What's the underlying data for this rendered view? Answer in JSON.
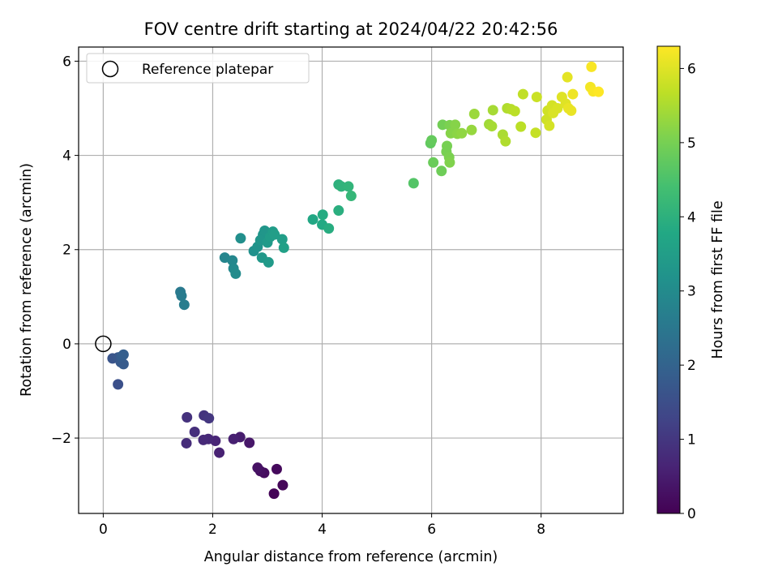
{
  "chart_data": {
    "type": "scatter",
    "title": "FOV centre drift starting at 2024/04/22 20:42:56",
    "xlabel": "Angular distance from reference (arcmin)",
    "ylabel": "Rotation from reference (arcmin)",
    "xlim": [
      -0.45,
      9.5
    ],
    "ylim": [
      -3.6,
      6.3
    ],
    "xticks": [
      "0",
      "2",
      "4",
      "6",
      "8"
    ],
    "yticks": [
      "−2",
      "0",
      "2",
      "4",
      "6"
    ],
    "grid": true,
    "legend": {
      "position": "top-left",
      "entries": [
        "Reference platepar"
      ]
    },
    "reference_point": {
      "x": 0,
      "y": 0
    },
    "colorbar": {
      "label": "Hours from first FF file",
      "range": [
        0,
        6.3
      ],
      "ticks": [
        "0",
        "1",
        "2",
        "3",
        "4",
        "5",
        "6"
      ],
      "colormap": "viridis"
    },
    "points": [
      {
        "x": 3.12,
        "y": -3.18,
        "c": 0.05
      },
      {
        "x": 3.28,
        "y": -3.0,
        "c": 0.1
      },
      {
        "x": 3.17,
        "y": -2.66,
        "c": 0.15
      },
      {
        "x": 2.94,
        "y": -2.74,
        "c": 0.2
      },
      {
        "x": 2.87,
        "y": -2.7,
        "c": 0.25
      },
      {
        "x": 2.82,
        "y": -2.63,
        "c": 0.3
      },
      {
        "x": 2.67,
        "y": -2.1,
        "c": 0.4
      },
      {
        "x": 2.5,
        "y": -1.98,
        "c": 0.5
      },
      {
        "x": 2.38,
        "y": -2.02,
        "c": 0.55
      },
      {
        "x": 2.12,
        "y": -2.31,
        "c": 0.6
      },
      {
        "x": 2.05,
        "y": -2.06,
        "c": 0.65
      },
      {
        "x": 1.92,
        "y": -2.02,
        "c": 0.7
      },
      {
        "x": 1.83,
        "y": -2.04,
        "c": 0.75
      },
      {
        "x": 1.52,
        "y": -2.11,
        "c": 0.8
      },
      {
        "x": 1.67,
        "y": -1.87,
        "c": 0.85
      },
      {
        "x": 1.53,
        "y": -1.56,
        "c": 0.9
      },
      {
        "x": 1.84,
        "y": -1.52,
        "c": 0.95
      },
      {
        "x": 1.93,
        "y": -1.58,
        "c": 1.0
      },
      {
        "x": 0.27,
        "y": -0.86,
        "c": 1.55
      },
      {
        "x": 0.17,
        "y": -0.31,
        "c": 1.65
      },
      {
        "x": 0.27,
        "y": -0.29,
        "c": 1.7
      },
      {
        "x": 0.32,
        "y": -0.39,
        "c": 1.75
      },
      {
        "x": 0.37,
        "y": -0.43,
        "c": 1.8
      },
      {
        "x": 0.33,
        "y": -0.27,
        "c": 1.85
      },
      {
        "x": 0.37,
        "y": -0.23,
        "c": 1.9
      },
      {
        "x": 1.41,
        "y": 1.1,
        "c": 2.55
      },
      {
        "x": 1.43,
        "y": 1.02,
        "c": 2.6
      },
      {
        "x": 1.48,
        "y": 0.83,
        "c": 2.65
      },
      {
        "x": 2.22,
        "y": 1.83,
        "c": 2.85
      },
      {
        "x": 2.36,
        "y": 1.77,
        "c": 2.9
      },
      {
        "x": 2.38,
        "y": 1.6,
        "c": 2.95
      },
      {
        "x": 2.42,
        "y": 1.49,
        "c": 3.0
      },
      {
        "x": 2.51,
        "y": 2.24,
        "c": 3.1
      },
      {
        "x": 2.75,
        "y": 1.97,
        "c": 3.15
      },
      {
        "x": 2.82,
        "y": 2.06,
        "c": 3.2
      },
      {
        "x": 2.92,
        "y": 2.32,
        "c": 3.25
      },
      {
        "x": 2.95,
        "y": 2.4,
        "c": 3.3
      },
      {
        "x": 2.87,
        "y": 2.2,
        "c": 3.3
      },
      {
        "x": 2.9,
        "y": 1.83,
        "c": 3.35
      },
      {
        "x": 3.02,
        "y": 1.73,
        "c": 3.4
      },
      {
        "x": 3.0,
        "y": 2.15,
        "c": 3.4
      },
      {
        "x": 3.05,
        "y": 2.27,
        "c": 3.45
      },
      {
        "x": 3.1,
        "y": 2.38,
        "c": 3.45
      },
      {
        "x": 3.13,
        "y": 2.32,
        "c": 3.5
      },
      {
        "x": 3.27,
        "y": 2.22,
        "c": 3.5
      },
      {
        "x": 3.3,
        "y": 2.04,
        "c": 3.55
      },
      {
        "x": 3.83,
        "y": 2.64,
        "c": 3.75
      },
      {
        "x": 4.0,
        "y": 2.53,
        "c": 3.8
      },
      {
        "x": 4.01,
        "y": 2.74,
        "c": 3.85
      },
      {
        "x": 4.12,
        "y": 2.45,
        "c": 3.9
      },
      {
        "x": 4.3,
        "y": 2.83,
        "c": 3.95
      },
      {
        "x": 4.3,
        "y": 3.38,
        "c": 4.0
      },
      {
        "x": 4.35,
        "y": 3.34,
        "c": 4.05
      },
      {
        "x": 4.48,
        "y": 3.34,
        "c": 4.1
      },
      {
        "x": 4.53,
        "y": 3.14,
        "c": 4.15
      },
      {
        "x": 5.67,
        "y": 3.41,
        "c": 4.6
      },
      {
        "x": 5.98,
        "y": 4.26,
        "c": 4.75
      },
      {
        "x": 6.0,
        "y": 4.32,
        "c": 4.8
      },
      {
        "x": 6.03,
        "y": 3.85,
        "c": 4.85
      },
      {
        "x": 6.18,
        "y": 3.67,
        "c": 4.9
      },
      {
        "x": 6.2,
        "y": 4.65,
        "c": 4.95
      },
      {
        "x": 6.27,
        "y": 4.08,
        "c": 5.0
      },
      {
        "x": 6.28,
        "y": 4.2,
        "c": 5.0
      },
      {
        "x": 6.33,
        "y": 4.64,
        "c": 5.05
      },
      {
        "x": 6.32,
        "y": 3.96,
        "c": 5.05
      },
      {
        "x": 6.33,
        "y": 3.85,
        "c": 5.1
      },
      {
        "x": 6.35,
        "y": 4.47,
        "c": 5.15
      },
      {
        "x": 6.43,
        "y": 4.65,
        "c": 5.15
      },
      {
        "x": 6.47,
        "y": 4.46,
        "c": 5.2
      },
      {
        "x": 6.55,
        "y": 4.47,
        "c": 5.25
      },
      {
        "x": 6.73,
        "y": 4.54,
        "c": 5.3
      },
      {
        "x": 6.78,
        "y": 4.88,
        "c": 5.35
      },
      {
        "x": 7.05,
        "y": 4.66,
        "c": 5.4
      },
      {
        "x": 7.1,
        "y": 4.62,
        "c": 5.45
      },
      {
        "x": 7.12,
        "y": 4.96,
        "c": 5.45
      },
      {
        "x": 7.3,
        "y": 4.44,
        "c": 5.5
      },
      {
        "x": 7.35,
        "y": 4.3,
        "c": 5.55
      },
      {
        "x": 7.38,
        "y": 5.0,
        "c": 5.55
      },
      {
        "x": 7.45,
        "y": 4.98,
        "c": 5.6
      },
      {
        "x": 7.52,
        "y": 4.94,
        "c": 5.65
      },
      {
        "x": 7.63,
        "y": 4.61,
        "c": 5.65
      },
      {
        "x": 7.67,
        "y": 5.3,
        "c": 5.7
      },
      {
        "x": 7.9,
        "y": 4.48,
        "c": 5.75
      },
      {
        "x": 7.92,
        "y": 5.24,
        "c": 5.8
      },
      {
        "x": 8.1,
        "y": 4.76,
        "c": 5.85
      },
      {
        "x": 8.12,
        "y": 4.95,
        "c": 5.85
      },
      {
        "x": 8.15,
        "y": 4.63,
        "c": 5.9
      },
      {
        "x": 8.2,
        "y": 5.06,
        "c": 5.9
      },
      {
        "x": 8.22,
        "y": 4.9,
        "c": 5.95
      },
      {
        "x": 8.3,
        "y": 5.0,
        "c": 5.95
      },
      {
        "x": 8.38,
        "y": 5.24,
        "c": 6.0
      },
      {
        "x": 8.45,
        "y": 5.1,
        "c": 6.0
      },
      {
        "x": 8.48,
        "y": 5.66,
        "c": 6.05
      },
      {
        "x": 8.5,
        "y": 5.0,
        "c": 6.1
      },
      {
        "x": 8.55,
        "y": 4.95,
        "c": 6.1
      },
      {
        "x": 8.58,
        "y": 5.3,
        "c": 6.15
      },
      {
        "x": 8.9,
        "y": 5.45,
        "c": 6.2
      },
      {
        "x": 8.92,
        "y": 5.88,
        "c": 6.25
      },
      {
        "x": 8.95,
        "y": 5.36,
        "c": 6.25
      },
      {
        "x": 9.05,
        "y": 5.35,
        "c": 6.3
      }
    ]
  }
}
